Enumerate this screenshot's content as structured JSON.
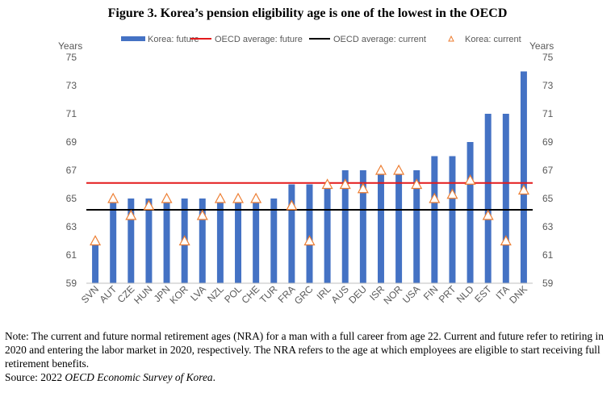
{
  "title": "Figure 3. Korea’s pension eligibility age is one of the lowest in the OECD",
  "note": "Note: The current and future normal retirement ages (NRA) for a man with a full career from age 22. Current and future refer to retiring in 2020 and entering the labor market in 2020, respectively. The NRA refers to the age at which employees are eligible to start receiving full retirement benefits.",
  "source_prefix": "Source: 2022 ",
  "source_title": "OECD Economic Survey of Korea",
  "source_suffix": ".",
  "colors": {
    "bar": "#4472c4",
    "oecd_future": "#e31a1c",
    "oecd_current": "#000000",
    "marker_stroke": "#ed7d31",
    "axis_text": "#595959"
  },
  "chart_data": {
    "type": "bar",
    "title": "",
    "left_axis_unit": "Years",
    "right_axis_unit": "Years",
    "ylim": [
      59,
      75
    ],
    "yticks": [
      59,
      61,
      63,
      65,
      67,
      69,
      71,
      73,
      75
    ],
    "grid": false,
    "legend_position": "top",
    "categories": [
      "SVN",
      "AUT",
      "CZE",
      "HUN",
      "JPN",
      "KOR",
      "LVA",
      "NZL",
      "POL",
      "CHE",
      "TUR",
      "FRA",
      "GRC",
      "IRL",
      "AUS",
      "DEU",
      "ISR",
      "NOR",
      "USA",
      "FIN",
      "PRT",
      "NLD",
      "EST",
      "ITA",
      "DNK"
    ],
    "series": [
      {
        "name": "Korea: future",
        "kind": "bar",
        "values": [
          62,
          65,
          65,
          65,
          65,
          65,
          65,
          65,
          65,
          65,
          65,
          66,
          66,
          66,
          67,
          67,
          67,
          67,
          67,
          68,
          68,
          69,
          71,
          71,
          74
        ]
      },
      {
        "name": "OECD average: future",
        "kind": "hline",
        "value": 66.1
      },
      {
        "name": "OECD average: current",
        "kind": "hline",
        "value": 64.2
      },
      {
        "name": "Korea: current",
        "kind": "marker",
        "values": [
          62,
          65,
          63.8,
          64.5,
          65,
          62,
          63.8,
          65,
          65,
          65,
          null,
          64.5,
          62,
          66,
          66,
          65.7,
          67,
          67,
          66,
          65,
          65.3,
          66.3,
          63.8,
          62,
          65.6
        ]
      }
    ]
  }
}
